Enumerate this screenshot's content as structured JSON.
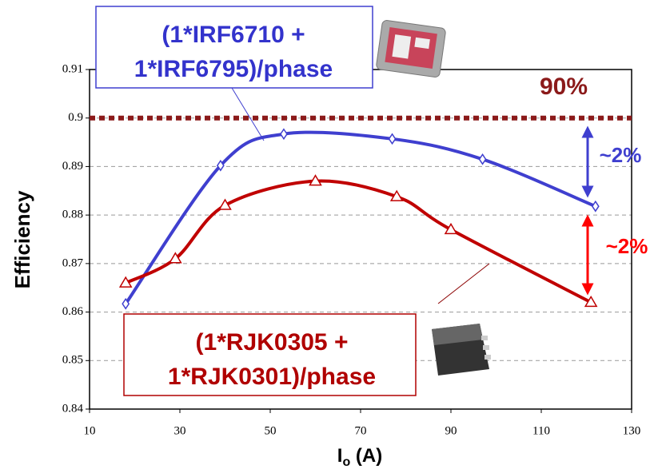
{
  "chart_data": {
    "type": "line",
    "y_label": "Efficiency",
    "x_label_main": "I",
    "x_label_sub": "o",
    "x_label_rest": " (A)",
    "xlim": [
      10,
      130
    ],
    "xticks": [
      10,
      30,
      50,
      70,
      90,
      110,
      130
    ],
    "ylim": [
      0.84,
      0.91
    ],
    "yticks": [
      0.84,
      0.85,
      0.86,
      0.87,
      0.88,
      0.89,
      0.9,
      0.91
    ],
    "grid": true,
    "reference_line": {
      "value": 0.9,
      "label": "90%",
      "color": "#8b1a1a"
    },
    "series": [
      {
        "name": [
          "(1*IRF6710 +",
          "1*IRF6795)/phase"
        ],
        "color": "#3f3fcf",
        "marker": "diamond",
        "x": [
          18,
          39,
          53,
          77,
          97,
          122
        ],
        "values": [
          0.8617,
          0.8902,
          0.8967,
          0.8957,
          0.8915,
          0.8818
        ]
      },
      {
        "name": [
          "(1*RJK0305 +",
          "1*RJK0301)/phase"
        ],
        "color": "#c00000",
        "marker": "triangle",
        "x": [
          18,
          29,
          40,
          60,
          78,
          90,
          121
        ],
        "values": [
          0.866,
          0.871,
          0.882,
          0.887,
          0.8838,
          0.877,
          0.862
        ]
      }
    ],
    "annotations": [
      "~2%",
      "~2%"
    ]
  }
}
